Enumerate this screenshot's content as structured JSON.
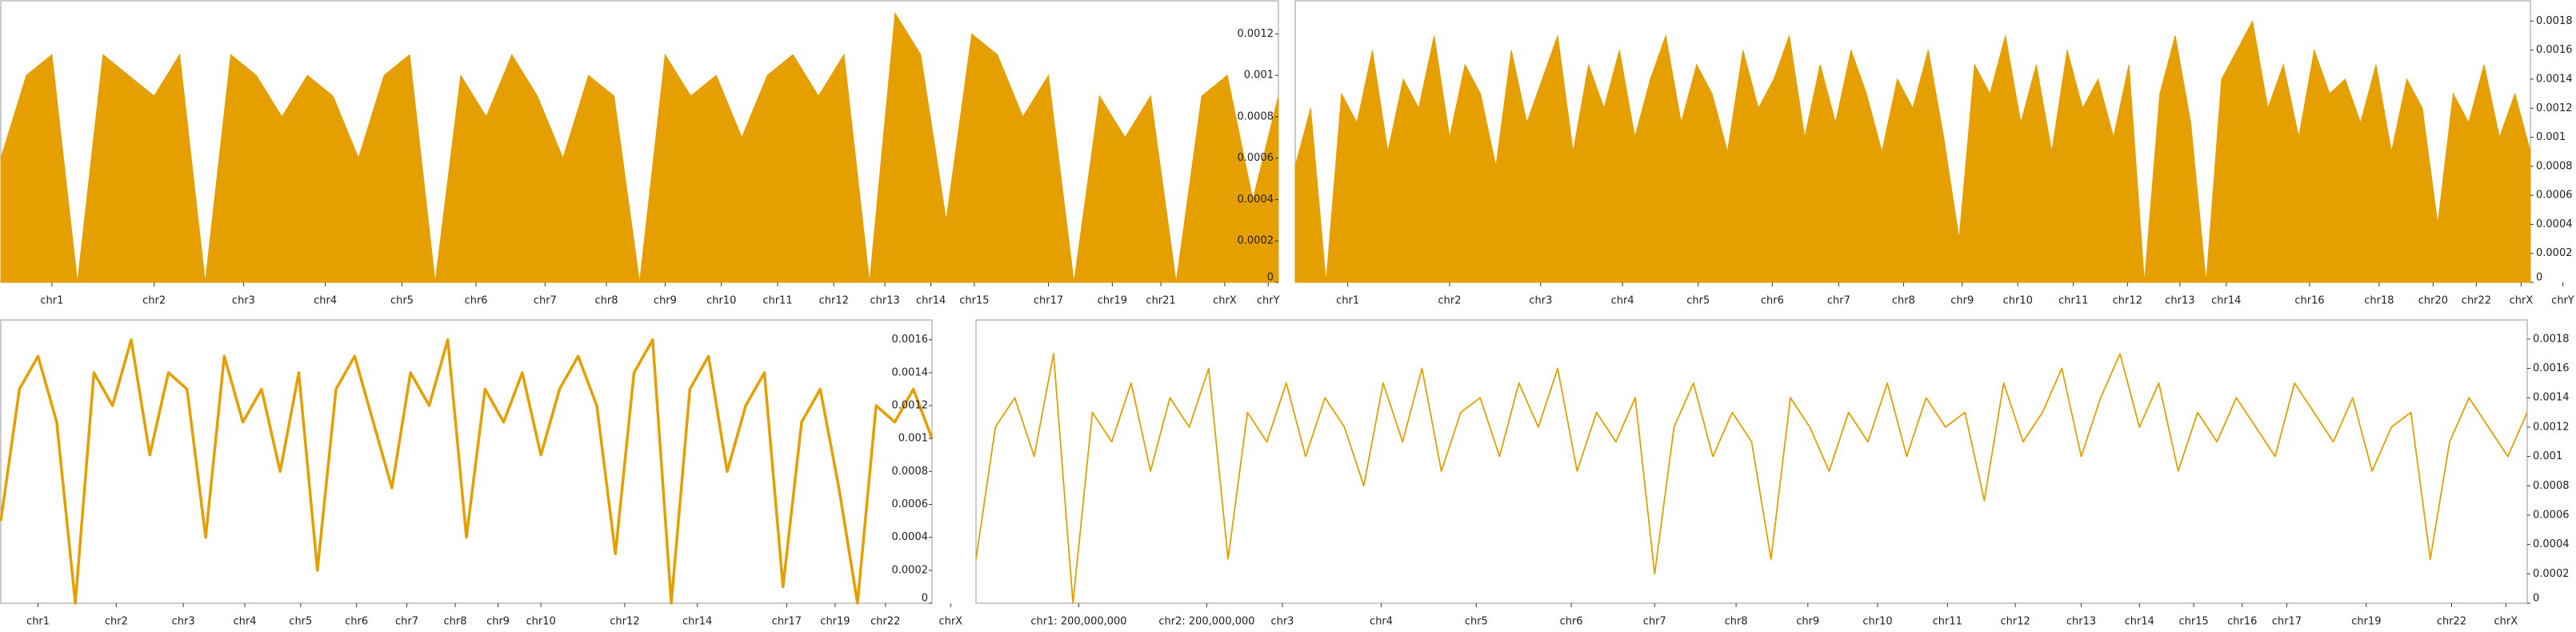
{
  "chart_data": [
    {
      "type": "area",
      "color": "#E69F00",
      "xlim": [
        0,
        50
      ],
      "ylim": [
        0,
        0.00136
      ],
      "yticks": [
        0,
        0.0002,
        0.0004,
        0.0006,
        0.0008,
        0.001,
        0.0012
      ],
      "xticks": [
        {
          "value": 2.0,
          "label": "chr1"
        },
        {
          "value": 6.0,
          "label": "chr2"
        },
        {
          "value": 9.5,
          "label": "chr3"
        },
        {
          "value": 12.7,
          "label": "chr4"
        },
        {
          "value": 15.7,
          "label": "chr5"
        },
        {
          "value": 18.6,
          "label": "chr6"
        },
        {
          "value": 21.3,
          "label": "chr7"
        },
        {
          "value": 23.7,
          "label": "chr8"
        },
        {
          "value": 26.0,
          "label": "chr9"
        },
        {
          "value": 28.2,
          "label": "chr10"
        },
        {
          "value": 30.4,
          "label": "chr11"
        },
        {
          "value": 32.6,
          "label": "chr12"
        },
        {
          "value": 34.6,
          "label": "chr13"
        },
        {
          "value": 36.4,
          "label": "chr14"
        },
        {
          "value": 38.1,
          "label": "chr15"
        },
        {
          "value": 41.0,
          "label": "chr17"
        },
        {
          "value": 43.5,
          "label": "chr19"
        },
        {
          "value": 45.4,
          "label": "chr21"
        },
        {
          "value": 47.9,
          "label": "chrX"
        },
        {
          "value": 49.6,
          "label": "chrY"
        }
      ],
      "values": [
        0.0006,
        0.001,
        0.0011,
        0,
        0.0011,
        0.001,
        0.0009,
        0.0011,
        0,
        0.0011,
        0.001,
        0.0008,
        0.001,
        0.0009,
        0.0006,
        0.001,
        0.0011,
        0,
        0.001,
        0.0008,
        0.0011,
        0.0009,
        0.0006,
        0.001,
        0.0009,
        0,
        0.0011,
        0.0009,
        0.001,
        0.0007,
        0.001,
        0.0011,
        0.0009,
        0.0011,
        0,
        0.0013,
        0.0011,
        0.0003,
        0.0012,
        0.0011,
        0.0008,
        0.001,
        0,
        0.0009,
        0.0007,
        0.0009,
        0,
        0.0009,
        0.001,
        0.0004,
        0.0009
      ]
    },
    {
      "type": "area",
      "color": "#E69F00",
      "xlim": [
        0,
        80
      ],
      "ylim": [
        0,
        0.00194
      ],
      "yticks": [
        0,
        0.0002,
        0.0004,
        0.0006,
        0.0008,
        0.001,
        0.0012,
        0.0014,
        0.0016,
        0.0018
      ],
      "xticks": [
        {
          "value": 3.4,
          "label": "chr1"
        },
        {
          "value": 10.0,
          "label": "chr2"
        },
        {
          "value": 15.9,
          "label": "chr3"
        },
        {
          "value": 21.2,
          "label": "chr4"
        },
        {
          "value": 26.1,
          "label": "chr5"
        },
        {
          "value": 30.9,
          "label": "chr6"
        },
        {
          "value": 35.2,
          "label": "chr7"
        },
        {
          "value": 39.4,
          "label": "chr8"
        },
        {
          "value": 43.2,
          "label": "chr9"
        },
        {
          "value": 46.8,
          "label": "chr10"
        },
        {
          "value": 50.4,
          "label": "chr11"
        },
        {
          "value": 53.9,
          "label": "chr12"
        },
        {
          "value": 57.3,
          "label": "chr13"
        },
        {
          "value": 60.3,
          "label": "chr14"
        },
        {
          "value": 65.7,
          "label": "chr16"
        },
        {
          "value": 70.2,
          "label": "chr18"
        },
        {
          "value": 73.7,
          "label": "chr20"
        },
        {
          "value": 76.5,
          "label": "chr22"
        },
        {
          "value": 79.4,
          "label": "chrX"
        },
        {
          "value": 82.1,
          "label": "chrY"
        }
      ],
      "values": [
        0.0008,
        0.0012,
        0,
        0.0013,
        0.0011,
        0.0016,
        0.0009,
        0.0014,
        0.0012,
        0.0017,
        0.001,
        0.0015,
        0.0013,
        0.0008,
        0.0016,
        0.0011,
        0.0014,
        0.0017,
        0.0009,
        0.0015,
        0.0012,
        0.0016,
        0.001,
        0.0014,
        0.0017,
        0.0011,
        0.0015,
        0.0013,
        0.0009,
        0.0016,
        0.0012,
        0.0014,
        0.0017,
        0.001,
        0.0015,
        0.0011,
        0.0016,
        0.0013,
        0.0009,
        0.0014,
        0.0012,
        0.0016,
        0.001,
        0.0003,
        0.0015,
        0.0013,
        0.0017,
        0.0011,
        0.0015,
        0.0009,
        0.0016,
        0.0012,
        0.0014,
        0.001,
        0.0015,
        0,
        0.0013,
        0.0017,
        0.0011,
        0,
        0.0014,
        0.0016,
        0.0018,
        0.0012,
        0.0015,
        0.001,
        0.0016,
        0.0013,
        0.0014,
        0.0011,
        0.0015,
        0.0009,
        0.0014,
        0.0012,
        0.0004,
        0.0013,
        0.0011,
        0.0015,
        0.001,
        0.0013,
        0.0009
      ]
    },
    {
      "type": "line",
      "color": "#E69F00",
      "xlim": [
        0,
        50
      ],
      "ylim": [
        0,
        0.00172
      ],
      "yticks": [
        0,
        0.0002,
        0.0004,
        0.0006,
        0.0008,
        0.001,
        0.0012,
        0.0014,
        0.0016
      ],
      "xticks": [
        {
          "value": 2.0,
          "label": "chr1"
        },
        {
          "value": 6.2,
          "label": "chr2"
        },
        {
          "value": 9.8,
          "label": "chr3"
        },
        {
          "value": 13.1,
          "label": "chr4"
        },
        {
          "value": 16.1,
          "label": "chr5"
        },
        {
          "value": 19.1,
          "label": "chr6"
        },
        {
          "value": 21.8,
          "label": "chr7"
        },
        {
          "value": 24.4,
          "label": "chr8"
        },
        {
          "value": 26.7,
          "label": "chr9"
        },
        {
          "value": 29.0,
          "label": "chr10"
        },
        {
          "value": 33.5,
          "label": "chr12"
        },
        {
          "value": 37.4,
          "label": "chr14"
        },
        {
          "value": 42.2,
          "label": "chr17"
        },
        {
          "value": 44.8,
          "label": "chr19"
        },
        {
          "value": 47.5,
          "label": "chr22"
        },
        {
          "value": 51.0,
          "label": "chrX"
        }
      ],
      "values": [
        0.0005,
        0.0013,
        0.0015,
        0.0011,
        0,
        0.0014,
        0.0012,
        0.0016,
        0.0009,
        0.0014,
        0.0013,
        0.0004,
        0.0015,
        0.0011,
        0.0013,
        0.0008,
        0.0014,
        0.0002,
        0.0013,
        0.0015,
        0.0011,
        0.0007,
        0.0014,
        0.0012,
        0.0016,
        0.0004,
        0.0013,
        0.0011,
        0.0014,
        0.0009,
        0.0013,
        0.0015,
        0.0012,
        0.0003,
        0.0014,
        0.0016,
        0,
        0.0013,
        0.0015,
        0.0008,
        0.0012,
        0.0014,
        0.0001,
        0.0011,
        0.0013,
        0.0007,
        0,
        0.0012,
        0.0011,
        0.0013,
        0.001
      ]
    },
    {
      "type": "line",
      "color": "#E69F00",
      "xlim": [
        0,
        80
      ],
      "ylim": [
        0,
        0.00193
      ],
      "yticks": [
        0,
        0.0002,
        0.0004,
        0.0006,
        0.0008,
        0.001,
        0.0012,
        0.0014,
        0.0016,
        0.0018
      ],
      "xticks": [
        {
          "value": 5.3,
          "label": "chr1: 200,000,000"
        },
        {
          "value": 11.9,
          "label": "chr2: 200,000,000"
        },
        {
          "value": 15.8,
          "label": "chr3"
        },
        {
          "value": 20.9,
          "label": "chr4"
        },
        {
          "value": 25.8,
          "label": "chr5"
        },
        {
          "value": 30.7,
          "label": "chr6"
        },
        {
          "value": 35.0,
          "label": "chr7"
        },
        {
          "value": 39.2,
          "label": "chr8"
        },
        {
          "value": 42.9,
          "label": "chr9"
        },
        {
          "value": 46.5,
          "label": "chr10"
        },
        {
          "value": 50.1,
          "label": "chr11"
        },
        {
          "value": 53.6,
          "label": "chr12"
        },
        {
          "value": 57.0,
          "label": "chr13"
        },
        {
          "value": 60.0,
          "label": "chr14"
        },
        {
          "value": 62.8,
          "label": "chr15"
        },
        {
          "value": 65.3,
          "label": "chr16"
        },
        {
          "value": 67.6,
          "label": "chr17"
        },
        {
          "value": 71.7,
          "label": "chr19"
        },
        {
          "value": 76.1,
          "label": "chr22"
        },
        {
          "value": 78.9,
          "label": "chrX"
        }
      ],
      "values": [
        0.0003,
        0.0012,
        0.0014,
        0.001,
        0.0017,
        0,
        0.0013,
        0.0011,
        0.0015,
        0.0009,
        0.0014,
        0.0012,
        0.0016,
        0.0003,
        0.0013,
        0.0011,
        0.0015,
        0.001,
        0.0014,
        0.0012,
        0.0008,
        0.0015,
        0.0011,
        0.0016,
        0.0009,
        0.0013,
        0.0014,
        0.001,
        0.0015,
        0.0012,
        0.0016,
        0.0009,
        0.0013,
        0.0011,
        0.0014,
        0.0002,
        0.0012,
        0.0015,
        0.001,
        0.0013,
        0.0011,
        0.0003,
        0.0014,
        0.0012,
        0.0009,
        0.0013,
        0.0011,
        0.0015,
        0.001,
        0.0014,
        0.0012,
        0.0013,
        0.0007,
        0.0015,
        0.0011,
        0.0013,
        0.0016,
        0.001,
        0.0014,
        0.0017,
        0.0012,
        0.0015,
        0.0009,
        0.0013,
        0.0011,
        0.0014,
        0.0012,
        0.001,
        0.0015,
        0.0013,
        0.0011,
        0.0014,
        0.0009,
        0.0012,
        0.0013,
        0.0003,
        0.0011,
        0.0014,
        0.0012,
        0.001,
        0.0013
      ]
    }
  ]
}
